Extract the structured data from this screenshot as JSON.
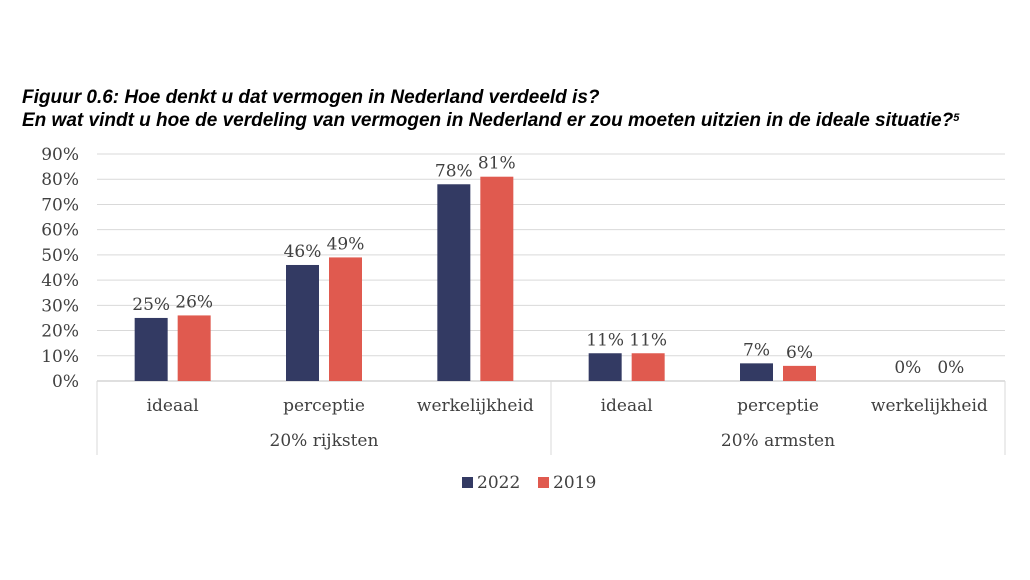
{
  "title": {
    "line1": "Figuur 0.6: Hoe denkt u dat vermogen in Nederland verdeeld is?",
    "line2": "En wat vindt u hoe de verdeling van vermogen in Nederland er zou moeten uitzien in de ideale situatie?",
    "footnote": "5"
  },
  "chart_data": {
    "type": "bar",
    "title": "Figuur 0.6: Hoe denkt u dat vermogen in Nederland verdeeld is? En wat vindt u hoe de verdeling van vermogen in Nederland er zou moeten uitzien in de ideale situatie?",
    "groups": [
      {
        "name": "20% rijksten",
        "categories": [
          "ideaal",
          "perceptie",
          "werkelijkheid"
        ]
      },
      {
        "name": "20% armsten",
        "categories": [
          "ideaal",
          "perceptie",
          "werkelijkheid"
        ]
      }
    ],
    "categories": [
      "ideaal",
      "perceptie",
      "werkelijkheid",
      "ideaal",
      "perceptie",
      "werkelijkheid"
    ],
    "series": [
      {
        "name": "2022",
        "color": "#333a63",
        "values": [
          25,
          46,
          78,
          11,
          7,
          0
        ],
        "labels": [
          "25%",
          "46%",
          "78%",
          "11%",
          "7%",
          "0%"
        ]
      },
      {
        "name": "2019",
        "color": "#e05a4f",
        "values": [
          26,
          49,
          81,
          11,
          6,
          0
        ],
        "labels": [
          "26%",
          "49%",
          "81%",
          "11%",
          "6%",
          "0%"
        ]
      }
    ],
    "yticks": [
      "0%",
      "10%",
      "20%",
      "30%",
      "40%",
      "50%",
      "60%",
      "70%",
      "80%",
      "90%"
    ],
    "ylim": [
      0,
      90
    ],
    "ylabel": "",
    "xlabel": "",
    "grid": true,
    "legend": "bottom-center"
  }
}
